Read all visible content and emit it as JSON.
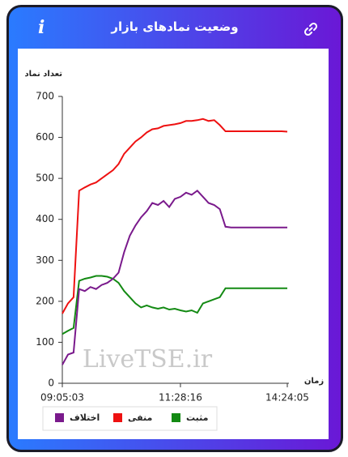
{
  "header": {
    "title": "وضعیت نمادهای بازار",
    "info_icon": "i"
  },
  "chart_data": {
    "type": "line",
    "y_label": "تعداد نماد",
    "x_label": "زمان",
    "watermark": "LiveTSE.ir",
    "categories": [
      "09:05:03",
      null,
      null,
      null,
      null,
      null,
      null,
      null,
      null,
      null,
      null,
      null,
      null,
      null,
      null,
      null,
      null,
      null,
      null,
      null,
      null,
      "11:28:16",
      null,
      null,
      null,
      null,
      null,
      null,
      null,
      null,
      null,
      null,
      null,
      null,
      null,
      null,
      null,
      null,
      null,
      null,
      "14:24:05"
    ],
    "ylim": [
      0,
      700
    ],
    "yticks": [
      0,
      100,
      200,
      300,
      400,
      500,
      600,
      700
    ],
    "series": [
      {
        "name": "مثبت",
        "color": "#138a13",
        "values": [
          120,
          128,
          135,
          250,
          255,
          258,
          262,
          262,
          260,
          255,
          245,
          225,
          210,
          195,
          185,
          190,
          185,
          182,
          185,
          180,
          182,
          178,
          175,
          178,
          172,
          195,
          200,
          205,
          210,
          232,
          232,
          232,
          232,
          232,
          232,
          232,
          232,
          232,
          232,
          232,
          232
        ]
      },
      {
        "name": "منفی",
        "color": "#ee1111",
        "values": [
          170,
          195,
          210,
          470,
          478,
          485,
          490,
          500,
          510,
          520,
          535,
          560,
          575,
          590,
          600,
          612,
          620,
          622,
          628,
          630,
          632,
          635,
          640,
          640,
          642,
          645,
          640,
          642,
          630,
          615,
          615,
          615,
          615,
          615,
          615,
          615,
          615,
          615,
          615,
          615,
          614
        ]
      },
      {
        "name": "اختلاف",
        "color": "#7a1a8c",
        "values": [
          45,
          70,
          75,
          230,
          225,
          235,
          230,
          240,
          245,
          255,
          270,
          320,
          360,
          385,
          405,
          420,
          440,
          435,
          445,
          430,
          450,
          455,
          465,
          460,
          470,
          455,
          440,
          435,
          425,
          382,
          380,
          380,
          380,
          380,
          380,
          380,
          380,
          380,
          380,
          380,
          380
        ]
      }
    ]
  }
}
